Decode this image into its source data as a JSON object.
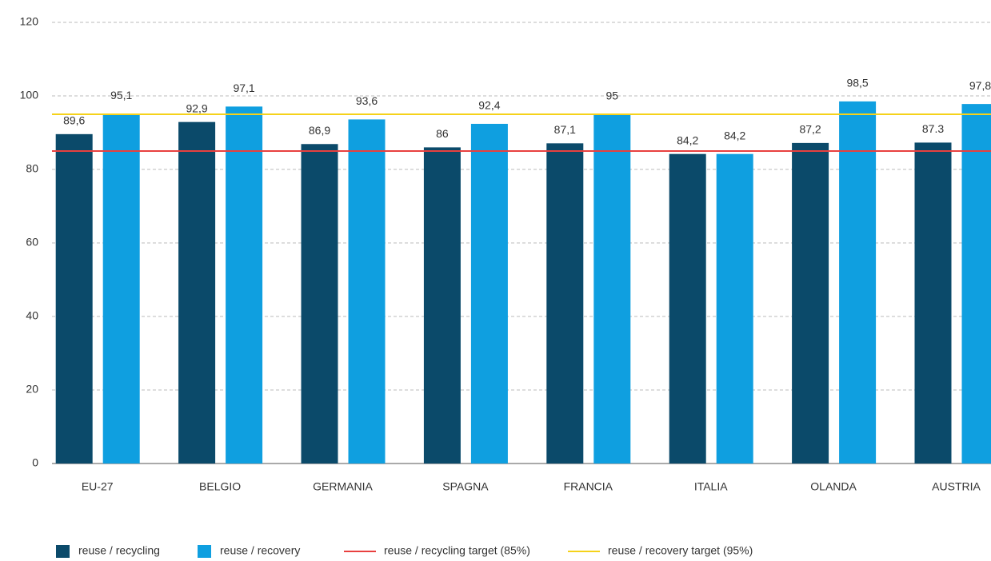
{
  "chart_data": {
    "type": "bar",
    "categories": [
      "EU-27",
      "BELGIO",
      "GERMANIA",
      "SPAGNA",
      "FRANCIA",
      "ITALIA",
      "OLANDA",
      "AUSTRIA"
    ],
    "series": [
      {
        "name": "reuse / recycling",
        "color": "#0b4a6a",
        "values": [
          89.6,
          92.9,
          86.9,
          86,
          87.1,
          84.2,
          87.2,
          87.3
        ],
        "value_labels": [
          "89,6",
          "92,9",
          "86,9",
          "86",
          "87,1",
          "84,2",
          "87,2",
          "87.3"
        ]
      },
      {
        "name": "reuse / recovery",
        "color": "#0f9fe0",
        "values": [
          95.1,
          97.1,
          93.6,
          92.4,
          95,
          84.2,
          98.5,
          97.8
        ],
        "value_labels": [
          "95,1",
          "97,1",
          "93,6",
          "92,4",
          "95",
          "84,2",
          "98,5",
          "97,8"
        ]
      }
    ],
    "reference_lines": [
      {
        "name": "reuse / recycling target (85%)",
        "color": "#e8403f",
        "value": 85
      },
      {
        "name": "reuse / recovery target (95%)",
        "color": "#f5d21a",
        "value": 95
      }
    ],
    "ylim": [
      0,
      120
    ],
    "yticks": [
      0,
      20,
      40,
      60,
      80,
      100,
      120
    ],
    "grid": true,
    "legend": "bottom"
  }
}
